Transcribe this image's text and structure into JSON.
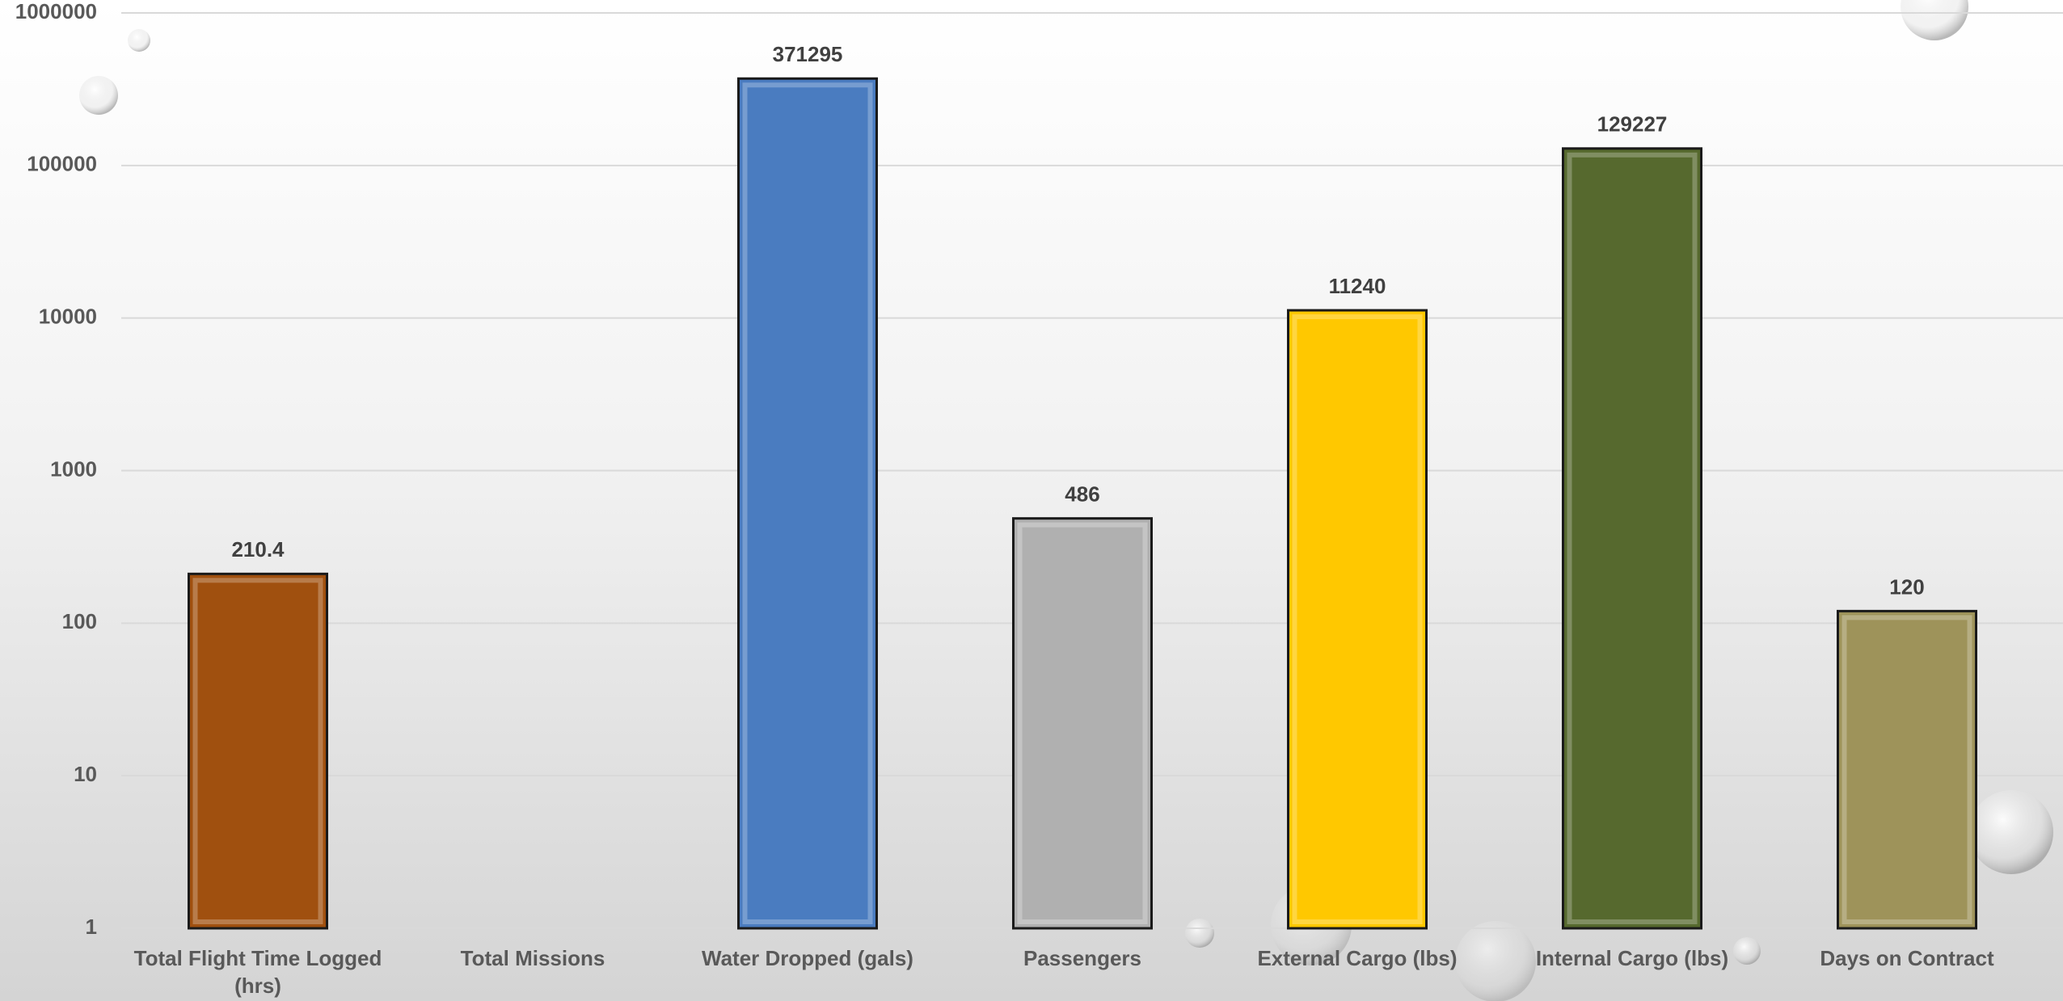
{
  "chart_data": {
    "type": "bar",
    "categories": [
      "Total Flight Time Logged (hrs)",
      "Total Missions",
      "Water Dropped (gals)",
      "Passengers",
      "External Cargo (lbs)",
      "Internal Cargo (lbs)",
      "Days on Contract"
    ],
    "values": [
      210.4,
      null,
      371295,
      486,
      11240,
      129227,
      120
    ],
    "colors": [
      "#a0500f",
      "#7f7f7f",
      "#4a7cc0",
      "#b0b0b0",
      "#ffc800",
      "#56692e",
      "#9e935a"
    ],
    "log_scale": true,
    "ylim": [
      1,
      1000000
    ],
    "yticks": [
      1,
      10,
      100,
      1000,
      10000,
      100000,
      1000000
    ],
    "grid": true
  }
}
